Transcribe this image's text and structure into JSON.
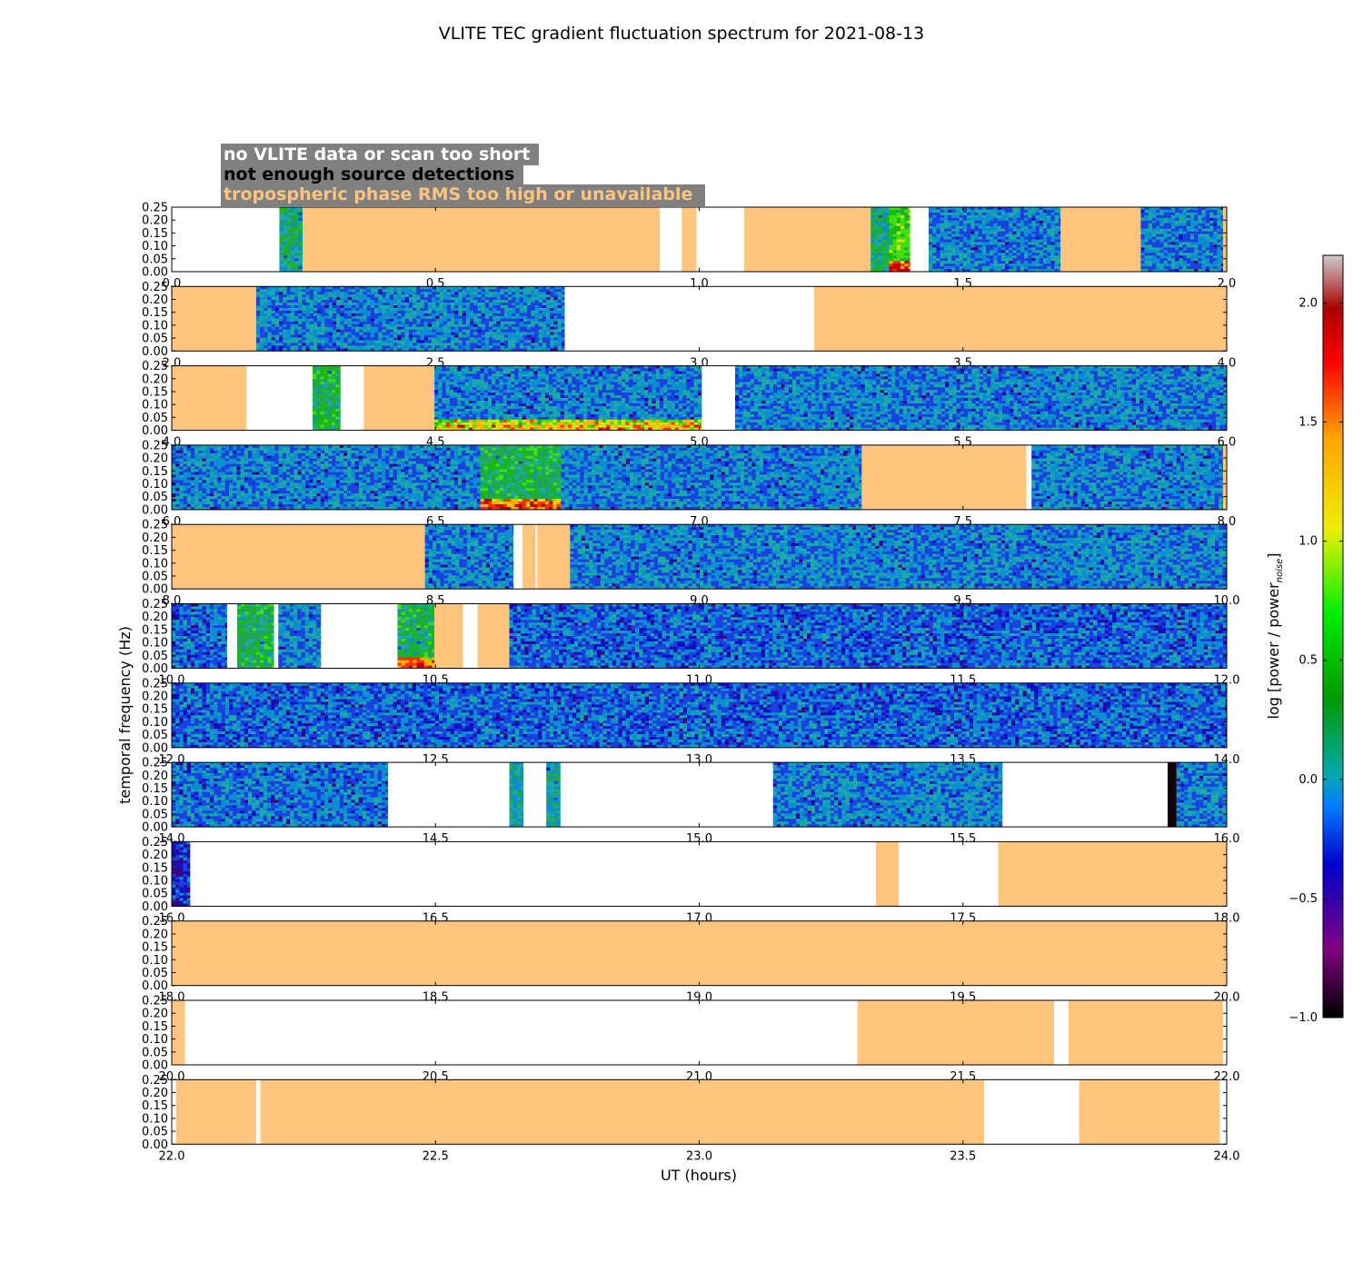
{
  "chart_data": {
    "type": "heatmap",
    "title": "VLITE TEC gradient fluctuation spectrum for 2021-08-13",
    "xlabel": "UT (hours)",
    "ylabel": "temporal frequency (Hz)",
    "ylim": [
      0,
      0.25
    ],
    "yticks": [
      "0.00",
      "0.05",
      "0.10",
      "0.15",
      "0.20",
      "0.25"
    ],
    "legend": [
      {
        "label": "no VLITE data or scan too short",
        "text_color": "#ffffff",
        "category": "no-data"
      },
      {
        "label": "not enough source detections",
        "text_color": "#000000",
        "category": "few-detections"
      },
      {
        "label": "tropospheric phase RMS too high or unavailable",
        "text_color": "#ffc47e",
        "category": "troposphere"
      }
    ],
    "legend_box_color": "#808080",
    "status_colors": {
      "no-data": "#ffffff",
      "troposphere": "#ffc47e"
    },
    "colorbar": {
      "label": "log [power / power",
      "label_sub": "noise",
      "label_end": "]",
      "range": [
        -1.0,
        2.2
      ],
      "ticks": [
        "2.0",
        "1.5",
        "1.0",
        "0.5",
        "0.0",
        "−0.5",
        "−1.0"
      ],
      "tick_values": [
        2.0,
        1.5,
        1.0,
        0.5,
        0.0,
        -0.5,
        -1.0
      ],
      "colors": [
        "#000000",
        "#800080",
        "#0000cc",
        "#0080ff",
        "#00aaaa",
        "#009900",
        "#00ee00",
        "#eeee00",
        "#ffa500",
        "#ff0000",
        "#aa0000",
        "#cccccc"
      ]
    },
    "panels": [
      {
        "xlim": [
          0,
          2
        ],
        "xticks": [
          "0.0",
          "0.5",
          "1.0",
          "1.5",
          "2.0"
        ],
        "segments": [
          [
            0.0,
            0.204,
            "none"
          ],
          [
            0.204,
            0.248,
            "data",
            0.3
          ],
          [
            0.248,
            0.925,
            "tropo"
          ],
          [
            0.925,
            0.967,
            "none"
          ],
          [
            0.967,
            0.995,
            "tropo"
          ],
          [
            0.995,
            1.085,
            "none"
          ],
          [
            1.085,
            1.325,
            "tropo"
          ],
          [
            1.325,
            1.36,
            "data",
            0.3
          ],
          [
            1.36,
            1.4,
            "data",
            0.7,
            true
          ],
          [
            1.4,
            1.435,
            "none"
          ],
          [
            1.435,
            1.685,
            "data",
            0
          ],
          [
            1.685,
            1.837,
            "tropo"
          ],
          [
            1.837,
            1.993,
            "data",
            0
          ],
          [
            1.993,
            2.0,
            "tropo"
          ]
        ]
      },
      {
        "xlim": [
          2,
          4
        ],
        "xticks": [
          "2.0",
          "2.5",
          "3.0",
          "3.5",
          "4.0"
        ],
        "segments": [
          [
            2.0,
            2.16,
            "tropo"
          ],
          [
            2.16,
            2.745,
            "data",
            0
          ],
          [
            2.745,
            3.218,
            "none"
          ],
          [
            3.218,
            4.0,
            "tropo"
          ]
        ]
      },
      {
        "xlim": [
          4,
          6
        ],
        "xticks": [
          "4.0",
          "4.5",
          "5.0",
          "5.5",
          "6.0"
        ],
        "segments": [
          [
            4.0,
            4.142,
            "tropo"
          ],
          [
            4.142,
            4.267,
            "none"
          ],
          [
            4.267,
            4.32,
            "data",
            0.45
          ],
          [
            4.32,
            4.364,
            "none"
          ],
          [
            4.364,
            4.498,
            "tropo"
          ],
          [
            4.498,
            5.005,
            "data",
            0,
            true
          ],
          [
            5.005,
            5.068,
            "none"
          ],
          [
            5.068,
            6.0,
            "data",
            0
          ]
        ]
      },
      {
        "xlim": [
          6,
          8
        ],
        "xticks": [
          "6.0",
          "6.5",
          "7.0",
          "7.5",
          "8.0"
        ],
        "segments": [
          [
            6.0,
            6.585,
            "data",
            0
          ],
          [
            6.585,
            6.738,
            "data",
            0.45,
            true
          ],
          [
            6.738,
            7.308,
            "data",
            0
          ],
          [
            7.308,
            7.62,
            "tropo"
          ],
          [
            7.62,
            7.63,
            "none"
          ],
          [
            7.63,
            7.993,
            "data",
            0
          ],
          [
            7.993,
            8.0,
            "tropo"
          ]
        ]
      },
      {
        "xlim": [
          8,
          10
        ],
        "xticks": [
          "8.0",
          "8.5",
          "9.0",
          "9.5",
          "10.0"
        ],
        "segments": [
          [
            8.0,
            8.48,
            "tropo"
          ],
          [
            8.48,
            8.648,
            "data",
            0
          ],
          [
            8.648,
            8.665,
            "none"
          ],
          [
            8.665,
            8.69,
            "tropo"
          ],
          [
            8.69,
            8.693,
            "none"
          ],
          [
            8.693,
            8.755,
            "tropo"
          ],
          [
            8.755,
            10.0,
            "data",
            0
          ]
        ]
      },
      {
        "xlim": [
          10,
          12
        ],
        "xticks": [
          "10.0",
          "10.5",
          "11.0",
          "11.5",
          "12.0"
        ],
        "segments": [
          [
            10.0,
            10.105,
            "data",
            -0.1
          ],
          [
            10.105,
            10.124,
            "none"
          ],
          [
            10.124,
            10.194,
            "data",
            0.45
          ],
          [
            10.194,
            10.202,
            "none"
          ],
          [
            10.202,
            10.283,
            "data",
            0
          ],
          [
            10.283,
            10.428,
            "none"
          ],
          [
            10.428,
            10.498,
            "data",
            0.45,
            true
          ],
          [
            10.498,
            10.552,
            "tropo"
          ],
          [
            10.552,
            10.58,
            "none"
          ],
          [
            10.58,
            10.64,
            "tropo"
          ],
          [
            10.64,
            12.0,
            "data",
            -0.1
          ]
        ]
      },
      {
        "xlim": [
          12,
          14
        ],
        "xticks": [
          "12.0",
          "12.5",
          "13.0",
          "13.5",
          "14.0"
        ],
        "segments": [
          [
            12.0,
            14.0,
            "data",
            -0.1
          ]
        ]
      },
      {
        "xlim": [
          14,
          16
        ],
        "xticks": [
          "14.0",
          "14.5",
          "15.0",
          "15.5",
          "16.0"
        ],
        "segments": [
          [
            14.0,
            14.41,
            "data",
            -0.05
          ],
          [
            14.41,
            14.64,
            "none"
          ],
          [
            14.64,
            14.667,
            "data",
            0.2
          ],
          [
            14.667,
            14.71,
            "none"
          ],
          [
            14.71,
            14.737,
            "data",
            0.2
          ],
          [
            14.737,
            15.14,
            "none"
          ],
          [
            15.14,
            15.575,
            "data",
            0
          ],
          [
            15.575,
            15.888,
            "none"
          ],
          [
            15.888,
            15.905,
            "black"
          ],
          [
            15.905,
            16.0,
            "data",
            0
          ]
        ]
      },
      {
        "xlim": [
          16,
          18
        ],
        "xticks": [
          "16.0",
          "16.5",
          "17.0",
          "17.5",
          "18.0"
        ],
        "segments": [
          [
            16.0,
            16.035,
            "data",
            -0.3
          ],
          [
            16.035,
            17.335,
            "none"
          ],
          [
            17.335,
            17.378,
            "tropo"
          ],
          [
            17.378,
            17.567,
            "none"
          ],
          [
            17.567,
            18.0,
            "tropo"
          ]
        ]
      },
      {
        "xlim": [
          18,
          20
        ],
        "xticks": [
          "18.0",
          "18.5",
          "19.0",
          "19.5",
          "20.0"
        ],
        "segments": [
          [
            18.0,
            20.0,
            "tropo"
          ]
        ]
      },
      {
        "xlim": [
          20,
          22
        ],
        "xticks": [
          "20.0",
          "20.5",
          "21.0",
          "21.5",
          "22.0"
        ],
        "segments": [
          [
            20.0,
            20.025,
            "tropo"
          ],
          [
            20.025,
            21.3,
            "none"
          ],
          [
            21.3,
            21.673,
            "tropo"
          ],
          [
            21.673,
            21.7,
            "none"
          ],
          [
            21.7,
            21.993,
            "tropo"
          ],
          [
            21.993,
            22.0,
            "none"
          ]
        ]
      },
      {
        "xlim": [
          22,
          24
        ],
        "xticks": [
          "22.0",
          "22.5",
          "23.0",
          "23.5",
          "24.0"
        ],
        "segments": [
          [
            22.0,
            22.008,
            "none"
          ],
          [
            22.008,
            22.16,
            "tropo"
          ],
          [
            22.16,
            22.168,
            "none"
          ],
          [
            22.168,
            23.54,
            "tropo"
          ],
          [
            23.54,
            23.72,
            "none"
          ],
          [
            23.72,
            23.987,
            "tropo"
          ],
          [
            23.987,
            24.0,
            "none"
          ]
        ]
      }
    ]
  }
}
